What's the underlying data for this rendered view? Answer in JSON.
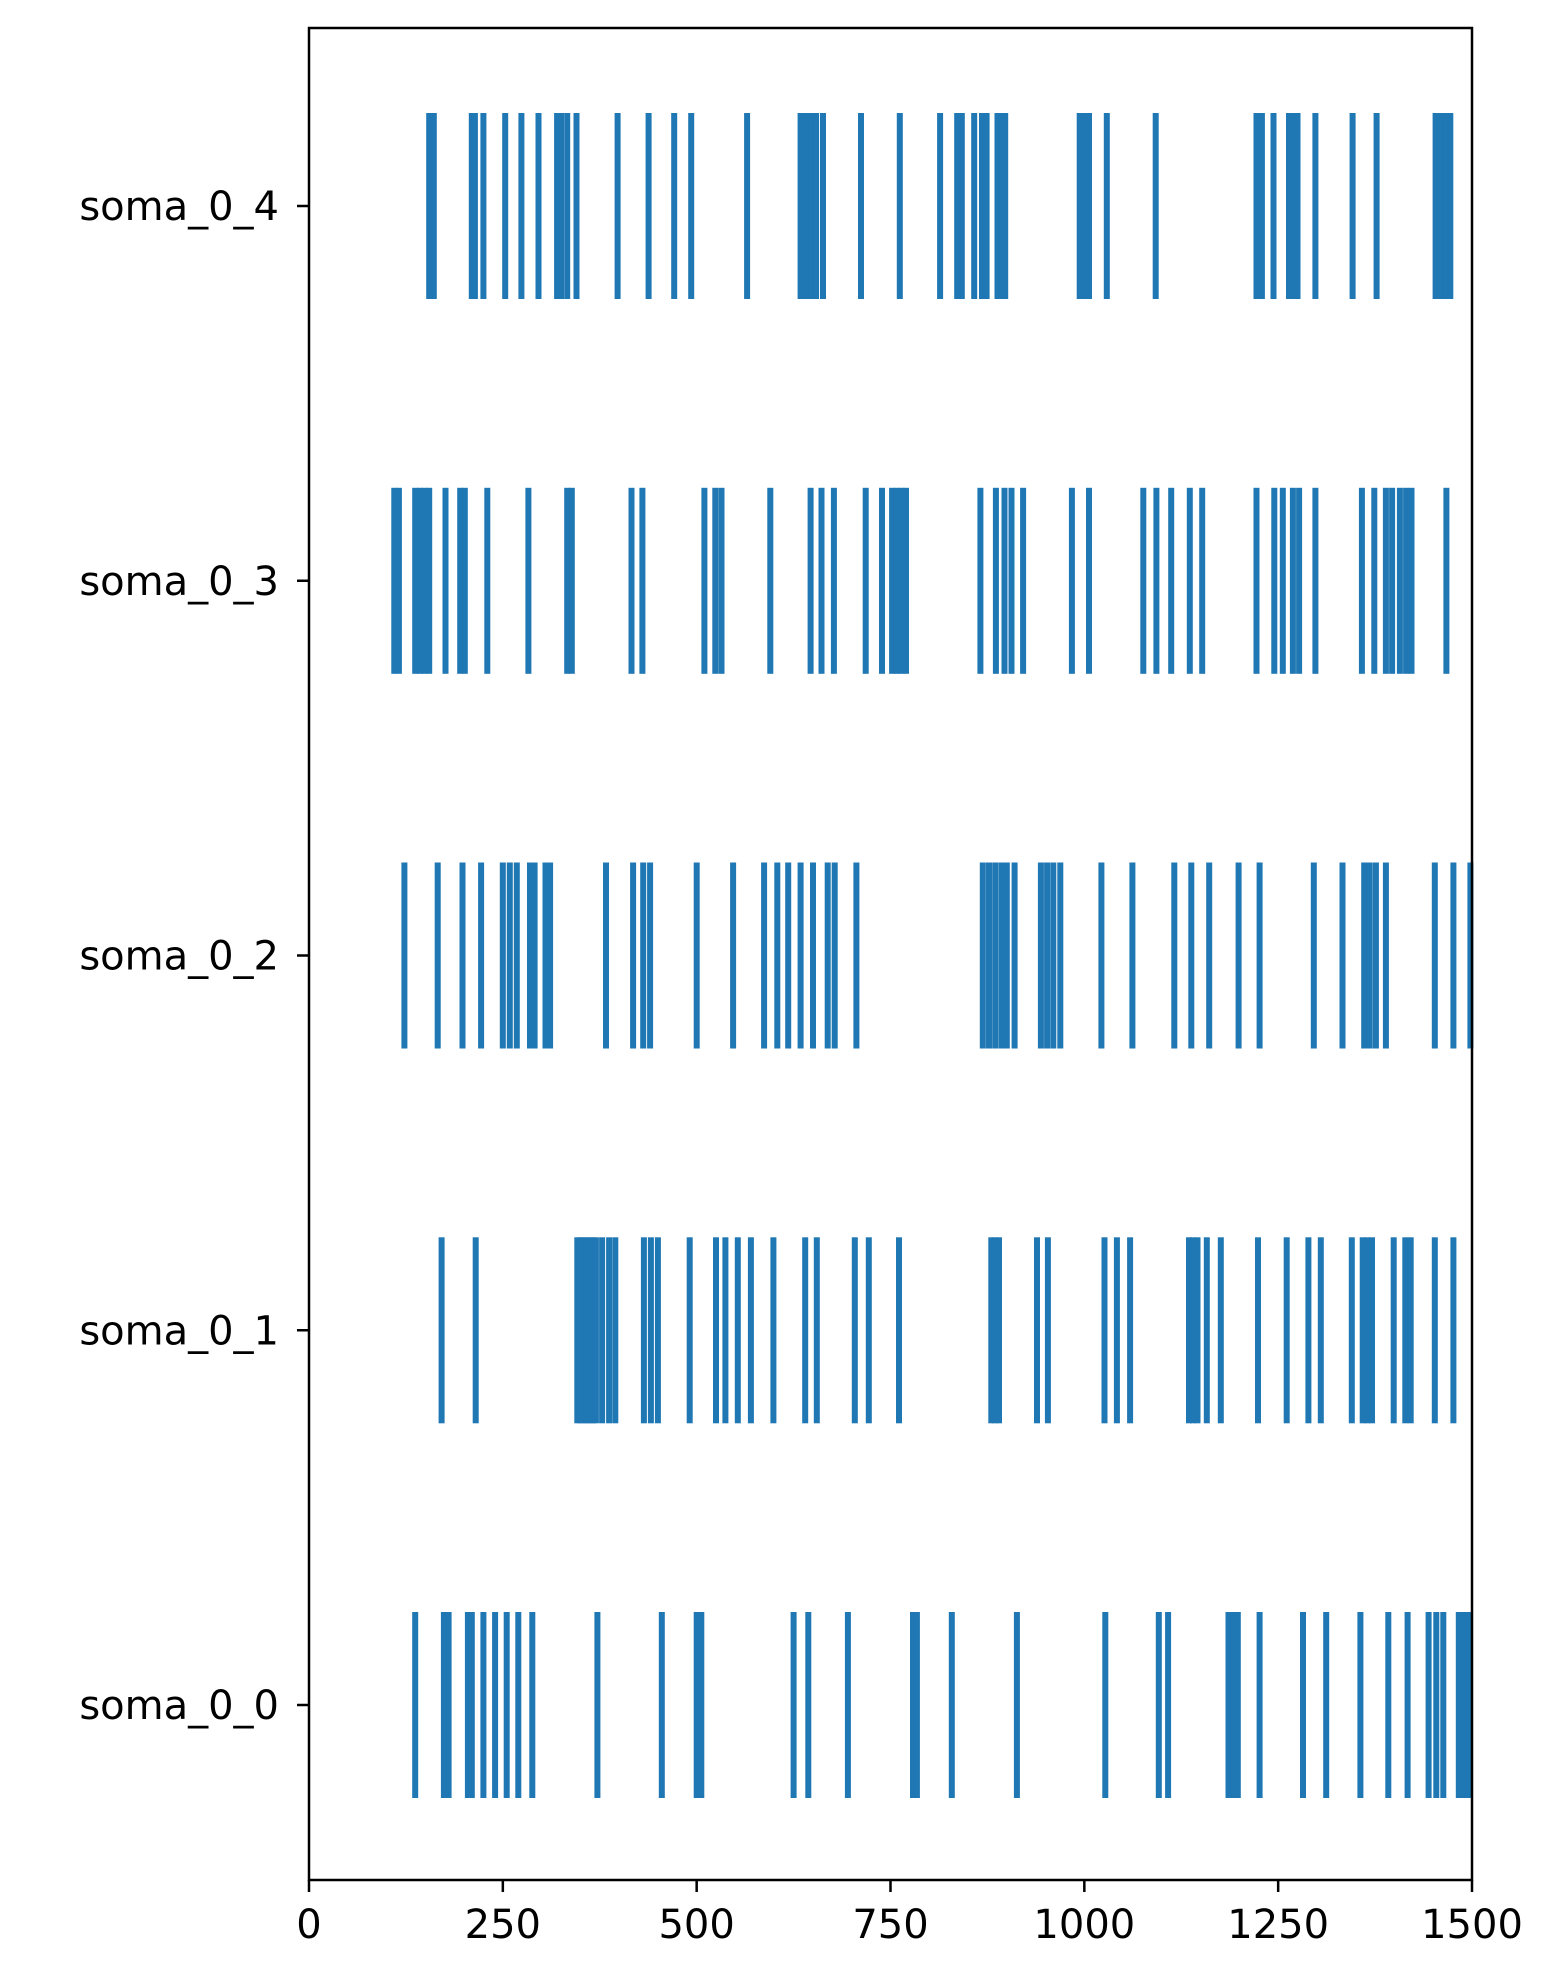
{
  "chart_data": {
    "type": "raster",
    "title": "",
    "xlabel": "",
    "ylabel": "",
    "xlim": [
      0,
      1500
    ],
    "x_ticks": [
      0,
      250,
      500,
      750,
      1000,
      1250,
      1500
    ],
    "x_tick_labels": [
      "0",
      "250",
      "500",
      "750",
      "1000",
      "1250",
      "1500"
    ],
    "y_tick_labels": [
      "soma_0_0",
      "soma_0_1",
      "soma_0_2",
      "soma_0_3",
      "soma_0_4"
    ],
    "grid": false,
    "color": "#1f77b4",
    "series": [
      {
        "name": "soma_0_0",
        "spikes": [
          137,
          174,
          180,
          205,
          210,
          225,
          240,
          255,
          270,
          288,
          372,
          455,
          500,
          506,
          625,
          644,
          695,
          779,
          784,
          829,
          913,
          1027,
          1096,
          1108,
          1186,
          1192,
          1198,
          1226,
          1282,
          1312,
          1356,
          1392,
          1417,
          1444,
          1454,
          1463,
          1483,
          1490,
          1496
        ]
      },
      {
        "name": "soma_0_1",
        "spikes": [
          171,
          215,
          346,
          350,
          354,
          358,
          362,
          366,
          370,
          378,
          387,
          395,
          432,
          441,
          450,
          491,
          525,
          537,
          553,
          570,
          599,
          640,
          655,
          704,
          722,
          761,
          880,
          885,
          890,
          939,
          953,
          1026,
          1042,
          1059,
          1135,
          1140,
          1146,
          1158,
          1176,
          1224,
          1261,
          1289,
          1305,
          1345,
          1359,
          1365,
          1371,
          1399,
          1414,
          1421,
          1452,
          1476
        ]
      },
      {
        "name": "soma_0_2",
        "spikes": [
          123,
          166,
          198,
          222,
          250,
          259,
          268,
          285,
          291,
          305,
          311,
          383,
          418,
          431,
          440,
          500,
          547,
          587,
          604,
          618,
          634,
          650,
          669,
          678,
          706,
          869,
          877,
          885,
          893,
          900,
          910,
          944,
          952,
          960,
          969,
          1022,
          1062,
          1116,
          1138,
          1161,
          1199,
          1226,
          1296,
          1333,
          1361,
          1368,
          1376,
          1389,
          1452,
          1476,
          1498
        ]
      },
      {
        "name": "soma_0_3",
        "spikes": [
          110,
          116,
          137,
          143,
          149,
          155,
          176,
          195,
          201,
          230,
          283,
          333,
          339,
          416,
          430,
          510,
          524,
          532,
          595,
          647,
          661,
          677,
          718,
          739,
          752,
          758,
          764,
          770,
          866,
          886,
          897,
          906,
          921,
          984,
          1006,
          1076,
          1093,
          1112,
          1136,
          1152,
          1222,
          1245,
          1256,
          1269,
          1277,
          1298,
          1358,
          1374,
          1389,
          1397,
          1407,
          1415,
          1422,
          1467
        ]
      },
      {
        "name": "soma_0_4",
        "spikes": [
          155,
          161,
          210,
          214,
          225,
          253,
          274,
          296,
          320,
          325,
          333,
          345,
          398,
          438,
          471,
          493,
          565,
          634,
          641,
          648,
          654,
          663,
          712,
          762,
          814,
          836,
          842,
          858,
          868,
          874,
          888,
          893,
          898,
          994,
          999,
          1006,
          1029,
          1092,
          1222,
          1229,
          1244,
          1264,
          1269,
          1275,
          1298,
          1346,
          1377,
          1453,
          1460,
          1466,
          1472
        ]
      }
    ]
  }
}
